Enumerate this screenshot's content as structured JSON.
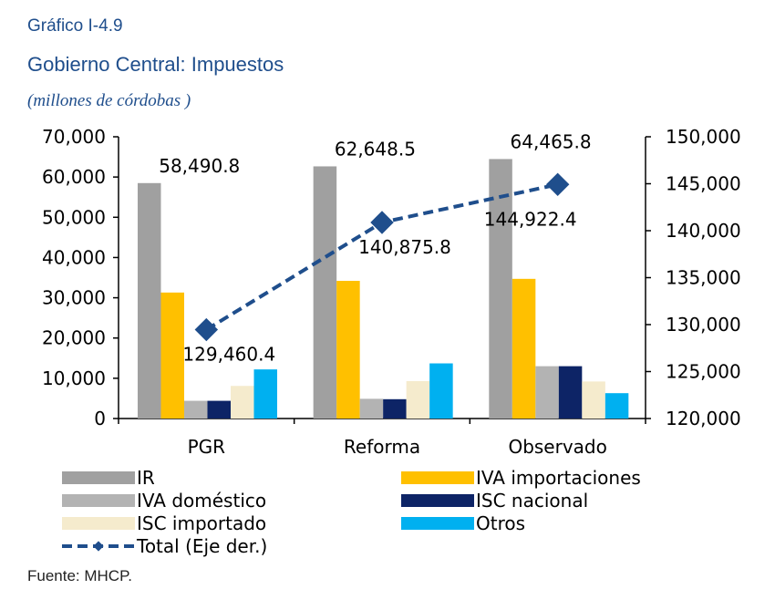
{
  "header": {
    "kicker": "Gráfico I-4.9",
    "title": "Gobierno Central: Impuestos",
    "unit": "(millones de córdobas )"
  },
  "source": "Fuente: MHCP.",
  "colors": {
    "IR": "#a0a0a0",
    "IVA importaciones": "#ffc000",
    "IVA doméstico": "#b3b3b3",
    "ISC nacional": "#0d2466",
    "ISC importado": "#f5ebcd",
    "Otros": "#00b0f0",
    "Total (Eje der.)": "#1f4e8c"
  },
  "chart_data": {
    "type": "bar",
    "categories": [
      "PGR",
      "Reforma",
      "Observado"
    ],
    "ylim": [
      0,
      70000
    ],
    "yticks": [
      "0",
      "10,000",
      "20,000",
      "30,000",
      "40,000",
      "50,000",
      "60,000",
      "70,000"
    ],
    "y2lim": [
      120000,
      150000
    ],
    "y2ticks": [
      "120,000",
      "125,000",
      "130,000",
      "135,000",
      "140,000",
      "145,000",
      "150,000"
    ],
    "series": [
      {
        "name": "IR",
        "values": [
          58490.8,
          62648.5,
          64465.8
        ],
        "labels": [
          "58,490.8",
          "62,648.5",
          "64,465.8"
        ]
      },
      {
        "name": "IVA importaciones",
        "values": [
          31300,
          34200,
          34700
        ]
      },
      {
        "name": "IVA doméstico",
        "values": [
          4400,
          4900,
          13000
        ]
      },
      {
        "name": "ISC nacional",
        "values": [
          4400,
          4800,
          13000
        ]
      },
      {
        "name": "ISC importado",
        "values": [
          8100,
          9300,
          9200
        ]
      },
      {
        "name": "Otros",
        "values": [
          12200,
          13700,
          6300
        ]
      }
    ],
    "line": {
      "name": "Total (Eje der.)",
      "axis": "right",
      "values": [
        129460.4,
        140875.8,
        144922.4
      ],
      "labels": [
        "129,460.4",
        "140,875.8",
        "144,922.4"
      ]
    },
    "legend": {
      "position": "bottom",
      "entries": [
        "IR",
        "IVA importaciones",
        "IVA doméstico",
        "ISC nacional",
        "ISC importado",
        "Otros",
        "Total (Eje der.)"
      ]
    }
  }
}
